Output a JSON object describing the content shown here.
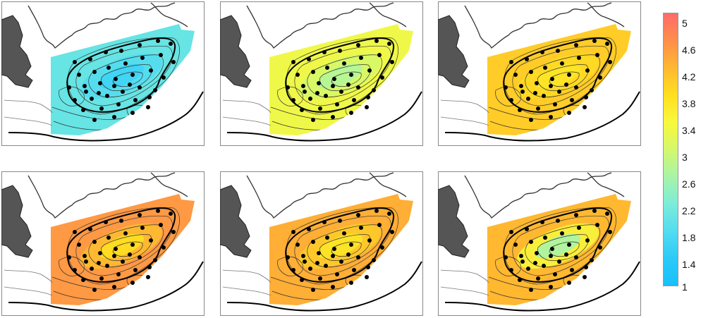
{
  "colorbar": {
    "tick_labels": [
      "5",
      "4.6",
      "4.2",
      "3.8",
      "3.4",
      "3",
      "2.6",
      "2.2",
      "1.8",
      "1.4",
      "1"
    ],
    "stops": [
      "#ff6b6b",
      "#ff8e4a",
      "#ffb830",
      "#ffdf20",
      "#f8f83c",
      "#d4f86c",
      "#a8f4a8",
      "#7cecd8",
      "#52dcf0",
      "#2ccaf8",
      "#18c0fa"
    ]
  },
  "maps": [
    {
      "id": "map-1",
      "level": 2.0,
      "hotspot_level": 1.6
    },
    {
      "id": "map-2",
      "level": 3.3,
      "hotspot_level": 2.7
    },
    {
      "id": "map-3",
      "level": 4.0,
      "hotspot_level": 3.7
    },
    {
      "id": "map-4",
      "level": 4.5,
      "hotspot_level": 3.8
    },
    {
      "id": "map-5",
      "level": 4.3,
      "hotspot_level": 3.7
    },
    {
      "id": "map-6",
      "level": 4.2,
      "hotspot_level": 2.6
    }
  ]
}
